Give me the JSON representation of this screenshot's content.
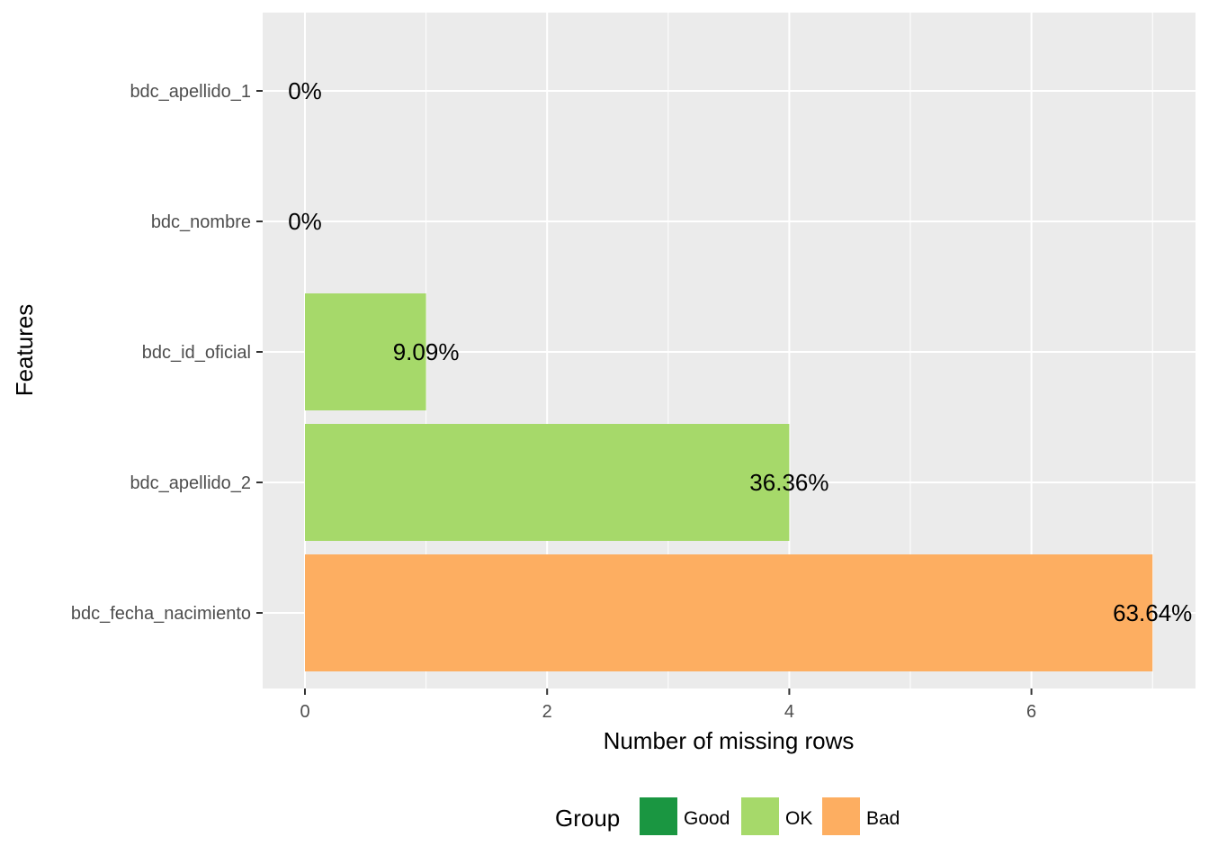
{
  "chart_data": {
    "type": "bar",
    "orientation": "horizontal",
    "categories": [
      "bdc_apellido_1",
      "bdc_nombre",
      "bdc_id_oficial",
      "bdc_apellido_2",
      "bdc_fecha_nacimiento"
    ],
    "values": [
      0,
      0,
      1,
      4,
      7
    ],
    "bar_labels": [
      "0%",
      "0%",
      "9.09%",
      "36.36%",
      "63.64%"
    ],
    "groups": [
      "OK",
      "OK",
      "OK",
      "OK",
      "Bad"
    ],
    "xlabel": "Number of missing rows",
    "ylabel": "Features",
    "xlim": [
      -0.35,
      7.35
    ],
    "xticks": [
      0,
      2,
      4,
      6
    ],
    "xtick_labels": [
      "0",
      "2",
      "4",
      "6"
    ],
    "grid": true,
    "legend": {
      "title": "Group",
      "position": "bottom",
      "entries": [
        {
          "label": "Good",
          "color": "#1a9641"
        },
        {
          "label": "OK",
          "color": "#a6d96a"
        },
        {
          "label": "Bad",
          "color": "#fdae61"
        }
      ]
    },
    "colors": {
      "panel_background": "#ebebeb",
      "grid_major": "#ffffff",
      "Good": "#1a9641",
      "OK": "#a6d96a",
      "Bad": "#fdae61"
    }
  }
}
